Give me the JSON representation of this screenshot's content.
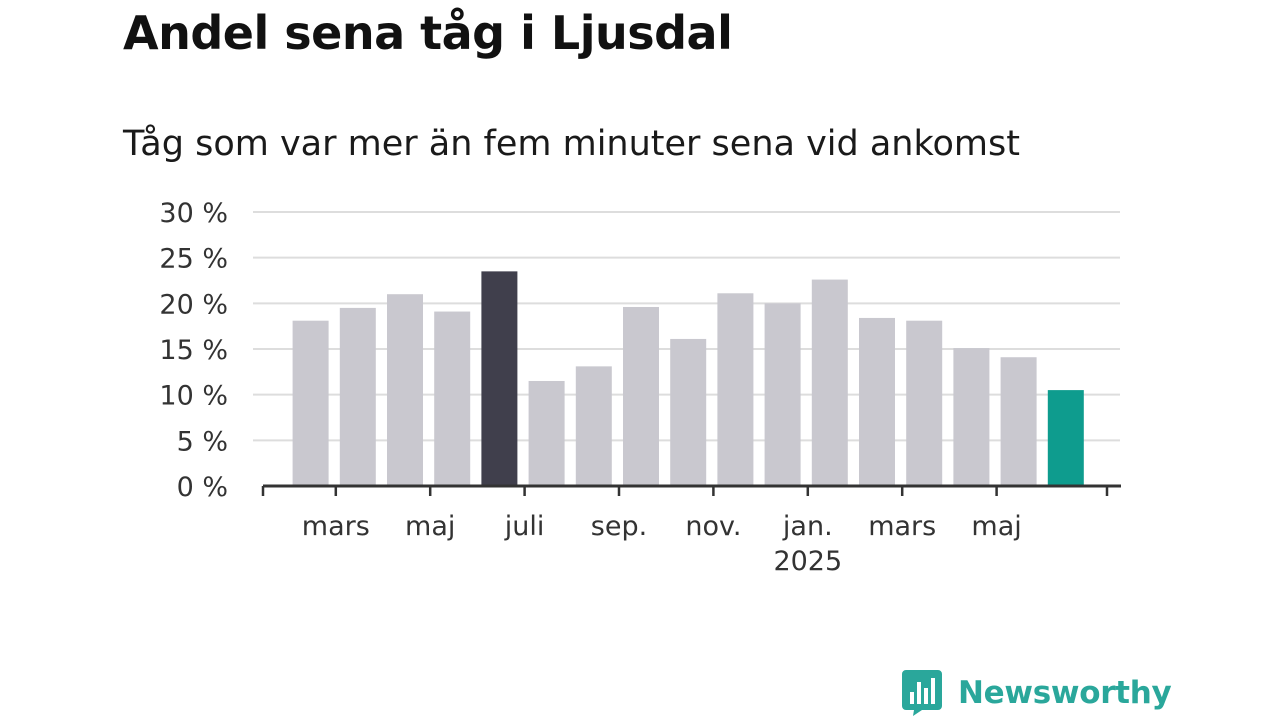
{
  "header": {
    "title": "Andel sena tåg i Ljusdal",
    "subtitle": "Tåg som var mer än fem minuter sena vid ankomst"
  },
  "brand": {
    "name": "Newsworthy",
    "icon": "newsworthy-bar-chart-icon",
    "color": "#2aa79b"
  },
  "chart_data": {
    "type": "bar",
    "title": "Andel sena tåg i Ljusdal",
    "subtitle": "Tåg som var mer än fem minuter sena vid ankomst",
    "xlabel": "",
    "ylabel": "",
    "ylim": [
      0,
      30
    ],
    "yticks": [
      0,
      5,
      10,
      15,
      20,
      25,
      30
    ],
    "ytick_labels": [
      "0 %",
      "5 %",
      "10 %",
      "15 %",
      "20 %",
      "25 %",
      "30 %"
    ],
    "grid": true,
    "legend": "none",
    "categories": [
      "2024-02",
      "2024-03",
      "2024-04",
      "2024-05",
      "2024-06",
      "2024-07",
      "2024-08",
      "2024-09",
      "2024-10",
      "2024-11",
      "2024-12",
      "2025-01",
      "2025-02",
      "2025-03",
      "2025-04",
      "2025-05",
      "2025-06"
    ],
    "values": [
      18.1,
      19.5,
      21.0,
      19.1,
      23.5,
      11.5,
      13.1,
      19.6,
      16.1,
      21.1,
      20.0,
      22.6,
      18.4,
      18.1,
      15.1,
      14.1,
      10.5
    ],
    "x_tick_labels": [
      {
        "category": "2024-03",
        "label": "mars",
        "sublabel": ""
      },
      {
        "category": "2024-05",
        "label": "maj",
        "sublabel": ""
      },
      {
        "category": "2024-07",
        "label": "juli",
        "sublabel": ""
      },
      {
        "category": "2024-09",
        "label": "sep.",
        "sublabel": ""
      },
      {
        "category": "2024-11",
        "label": "nov.",
        "sublabel": ""
      },
      {
        "category": "2025-01",
        "label": "jan.",
        "sublabel": "2025"
      },
      {
        "category": "2025-03",
        "label": "mars",
        "sublabel": ""
      },
      {
        "category": "2025-05",
        "label": "maj",
        "sublabel": ""
      }
    ],
    "colors": {
      "default": "#c9c8cf",
      "max_highlight": "#403f4c",
      "latest_highlight": "#0e9c8e",
      "grid": "#dddddd",
      "axis": "#333333"
    },
    "highlights": {
      "2024-06": "max_highlight",
      "2025-06": "latest_highlight"
    }
  }
}
